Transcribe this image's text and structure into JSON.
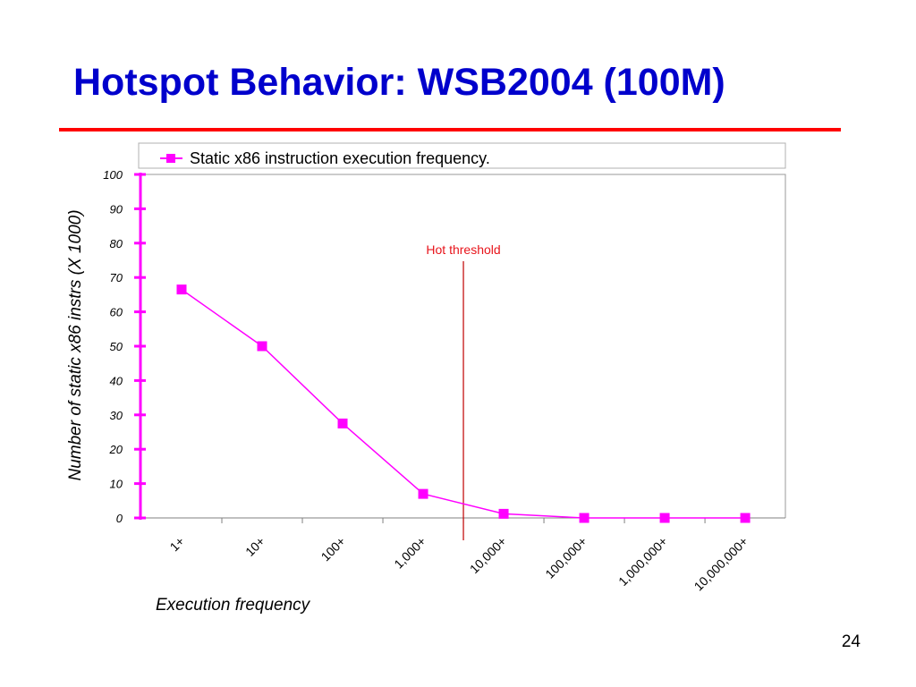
{
  "slide": {
    "title": "Hotspot Behavior: WSB2004 (100M)",
    "page_number": "24"
  },
  "colors": {
    "title": "#0000cc",
    "rule": "#ff0000",
    "series": "#ff00ff",
    "threshold": "#c00000",
    "annotation": "#e8141b"
  },
  "chart_data": {
    "type": "line",
    "title": "",
    "xlabel": "Execution frequency",
    "ylabel": "Number of static x86 instrs (X 1000)",
    "categories": [
      "1+",
      "10+",
      "100+",
      "1,000+",
      "10,000+",
      "100,000+",
      "1,000,000+",
      "10,000,000+"
    ],
    "ylim": [
      0,
      100
    ],
    "yticks": [
      0,
      10,
      20,
      30,
      40,
      50,
      60,
      70,
      80,
      90,
      100
    ],
    "grid": false,
    "legend_position": "top",
    "series": [
      {
        "name": "Static x86 instruction execution frequency.",
        "values": [
          66.5,
          50,
          27.5,
          7,
          1.2,
          0,
          0,
          0
        ],
        "color": "#ff00ff",
        "marker": "square"
      }
    ],
    "annotations": [
      {
        "text": "Hot threshold",
        "x_position_category_index": 3.5
      }
    ]
  }
}
